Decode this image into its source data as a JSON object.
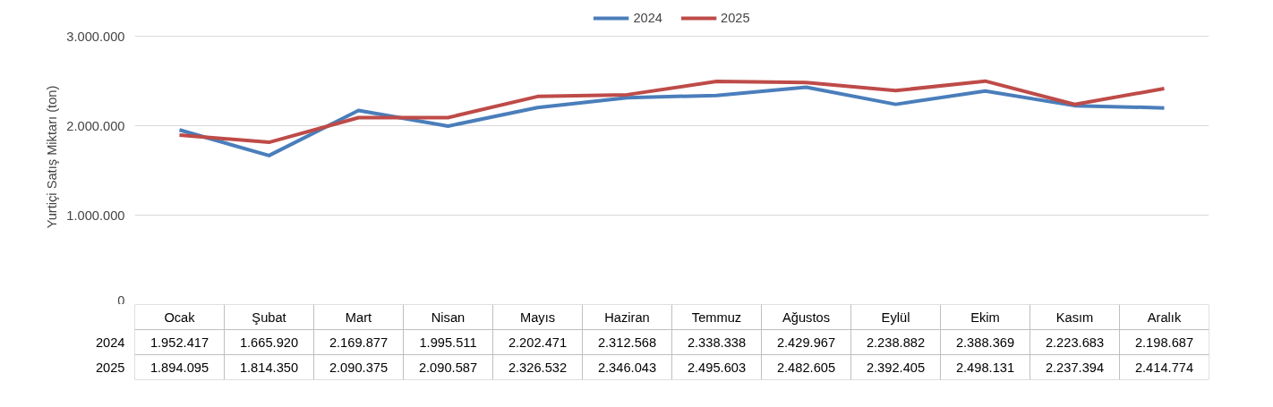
{
  "chart_data": {
    "type": "line",
    "ylabel": "Yurtiçi Satış Miktarı (ton)",
    "categories": [
      "Ocak",
      "Şubat",
      "Mart",
      "Nisan",
      "Mayıs",
      "Haziran",
      "Temmuz",
      "Ağustos",
      "Eylül",
      "Ekim",
      "Kasım",
      "Aralık"
    ],
    "series": [
      {
        "name": "2024",
        "color": "#4a7ebb",
        "values": [
          1952417,
          1665920,
          2169877,
          1995511,
          2202471,
          2312568,
          2338338,
          2429967,
          2238882,
          2388369,
          2223683,
          2198687
        ],
        "value_labels": [
          "1.952.417",
          "1.665.920",
          "2.169.877",
          "1.995.511",
          "2.202.471",
          "2.312.568",
          "2.338.338",
          "2.429.967",
          "2.238.882",
          "2.388.369",
          "2.223.683",
          "2.198.687"
        ]
      },
      {
        "name": "2025",
        "color": "#be4b48",
        "values": [
          1894095,
          1814350,
          2090375,
          2090587,
          2326532,
          2346043,
          2495603,
          2482605,
          2392405,
          2498131,
          2237394,
          2414774
        ],
        "value_labels": [
          "1.894.095",
          "1.814.350",
          "2.090.375",
          "2.090.587",
          "2.326.532",
          "2.346.043",
          "2.495.603",
          "2.482.605",
          "2.392.405",
          "2.498.131",
          "2.237.394",
          "2.414.774"
        ]
      }
    ],
    "ylim": [
      0,
      3000000
    ],
    "yticks": [
      0,
      {
        "value": 1000000,
        "label": "1.000.000"
      },
      {
        "value": 2000000,
        "label": "2.000.000"
      },
      {
        "value": 3000000,
        "label": "3.000.000"
      }
    ],
    "grid": "y",
    "legend": "top",
    "data_labels": true,
    "line_style": "solid",
    "marker": "none"
  }
}
